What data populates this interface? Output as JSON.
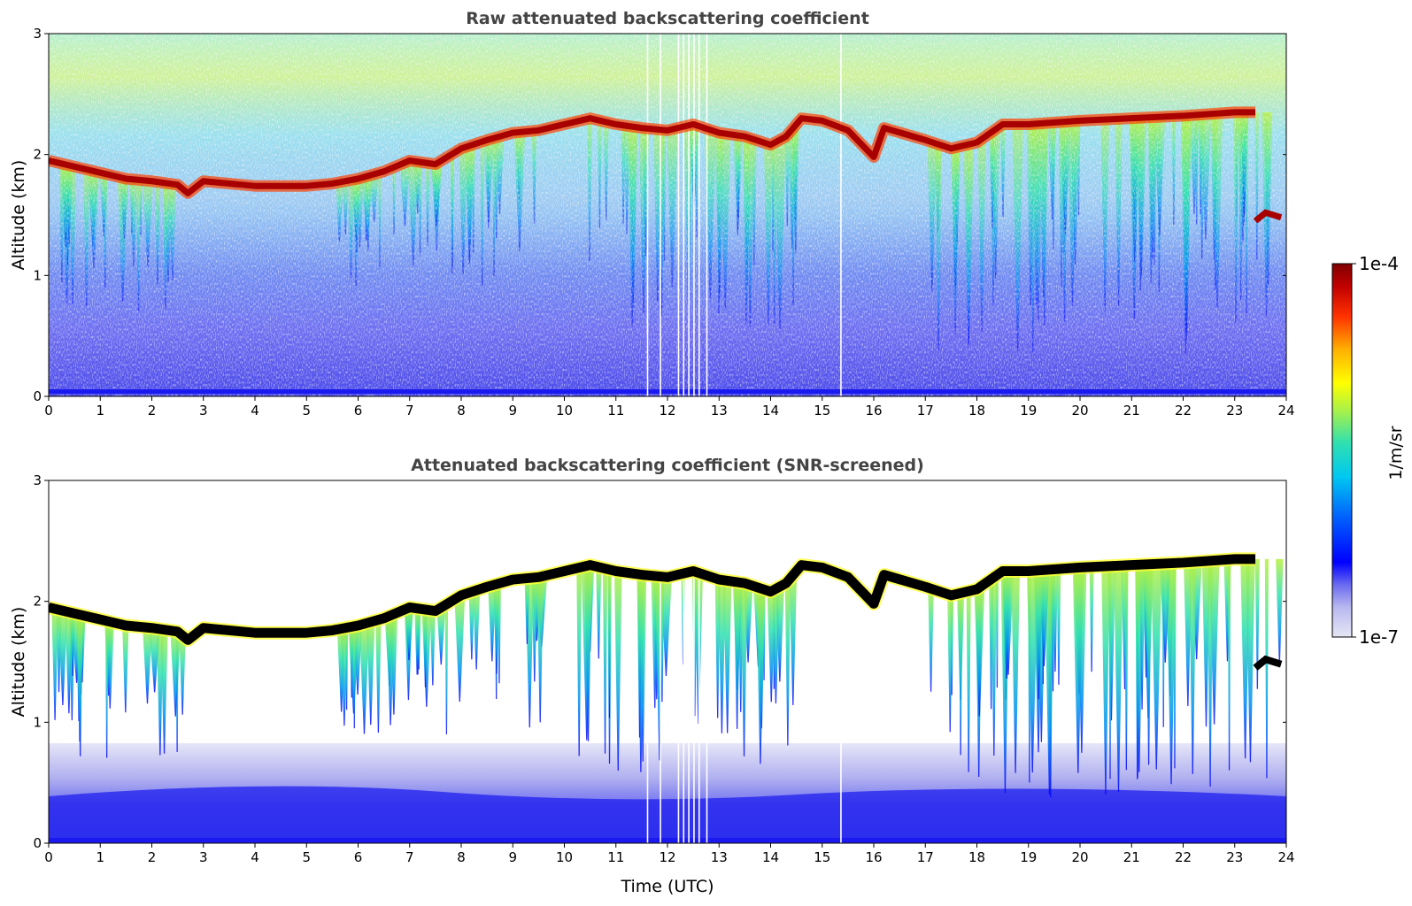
{
  "chart_data": [
    {
      "type": "heatmap",
      "title": "Raw attenuated backscattering coefficient",
      "xlabel": "",
      "ylabel": "Altitude (km)",
      "xlim": [
        0,
        24
      ],
      "ylim": [
        0,
        3
      ],
      "x_ticks": [
        "0",
        "1",
        "2",
        "3",
        "4",
        "5",
        "6",
        "7",
        "8",
        "9",
        "10",
        "11",
        "12",
        "13",
        "14",
        "15",
        "16",
        "17",
        "18",
        "19",
        "20",
        "21",
        "22",
        "23",
        "24"
      ],
      "y_ticks": [
        "0",
        "1",
        "2",
        "3"
      ],
      "color_scale": "jet",
      "gaps_utc": [
        11.6,
        11.85,
        12.2,
        12.3,
        12.4,
        12.5,
        12.6,
        12.75,
        15.35
      ],
      "series": [
        {
          "name": "cloud layer",
          "x": [
            0,
            0.5,
            1,
            1.5,
            2,
            2.5,
            2.7,
            3,
            4,
            5,
            5.5,
            6,
            6.5,
            7,
            7.5,
            8,
            8.5,
            9,
            9.5,
            10,
            10.5,
            11,
            11.5,
            12,
            12.5,
            13,
            13.5,
            14,
            14.3,
            14.6,
            15,
            15.5,
            16,
            16.2,
            17,
            17.5,
            18,
            18.5,
            19,
            20,
            21,
            22,
            23,
            23.4
          ],
          "y": [
            1.95,
            1.9,
            1.85,
            1.8,
            1.78,
            1.75,
            1.68,
            1.78,
            1.74,
            1.74,
            1.76,
            1.8,
            1.86,
            1.95,
            1.92,
            2.05,
            2.12,
            2.18,
            2.2,
            2.25,
            2.3,
            2.25,
            2.22,
            2.2,
            2.25,
            2.18,
            2.15,
            2.08,
            2.15,
            2.3,
            2.28,
            2.2,
            1.98,
            2.22,
            2.12,
            2.05,
            2.1,
            2.25,
            2.25,
            2.28,
            2.3,
            2.32,
            2.35,
            2.35
          ]
        }
      ]
    },
    {
      "type": "heatmap",
      "title": "Attenuated backscattering coefficient (SNR-screened)",
      "xlabel": "Time (UTC)",
      "ylabel": "Altitude (km)",
      "xlim": [
        0,
        24
      ],
      "ylim": [
        0,
        3
      ],
      "x_ticks": [
        "0",
        "1",
        "2",
        "3",
        "4",
        "5",
        "6",
        "7",
        "8",
        "9",
        "10",
        "11",
        "12",
        "13",
        "14",
        "15",
        "16",
        "17",
        "18",
        "19",
        "20",
        "21",
        "22",
        "23",
        "24"
      ],
      "y_ticks": [
        "0",
        "1",
        "2",
        "3"
      ],
      "color_scale": "jet",
      "series": [
        {
          "name": "cloud layer",
          "x": [
            0,
            0.5,
            1,
            1.5,
            2,
            2.5,
            2.7,
            3,
            4,
            5,
            5.5,
            6,
            6.5,
            7,
            7.5,
            8,
            8.5,
            9,
            9.5,
            10,
            10.5,
            11,
            11.5,
            12,
            12.5,
            13,
            13.5,
            14,
            14.3,
            14.6,
            15,
            15.5,
            16,
            16.2,
            17,
            17.5,
            18,
            18.5,
            19,
            20,
            21,
            22,
            23,
            23.4
          ],
          "y": [
            1.95,
            1.9,
            1.85,
            1.8,
            1.78,
            1.75,
            1.68,
            1.78,
            1.74,
            1.74,
            1.76,
            1.8,
            1.86,
            1.95,
            1.92,
            2.05,
            2.12,
            2.18,
            2.2,
            2.25,
            2.3,
            2.25,
            2.22,
            2.2,
            2.25,
            2.18,
            2.15,
            2.08,
            2.15,
            2.3,
            2.28,
            2.2,
            1.98,
            2.22,
            2.12,
            2.05,
            2.1,
            2.25,
            2.25,
            2.28,
            2.3,
            2.32,
            2.35,
            2.35
          ]
        }
      ]
    }
  ],
  "colorbar": {
    "max_label": "1e-4",
    "min_label": "1e-7",
    "label": "1/m/sr",
    "colors": [
      "#e6e6f5",
      "#b8b8f0",
      "#6a6af0",
      "#0000ff",
      "#0060ff",
      "#00c8f0",
      "#30e0b0",
      "#a0f050",
      "#ffff00",
      "#ffb000",
      "#ff3000",
      "#c00000",
      "#800000"
    ]
  }
}
